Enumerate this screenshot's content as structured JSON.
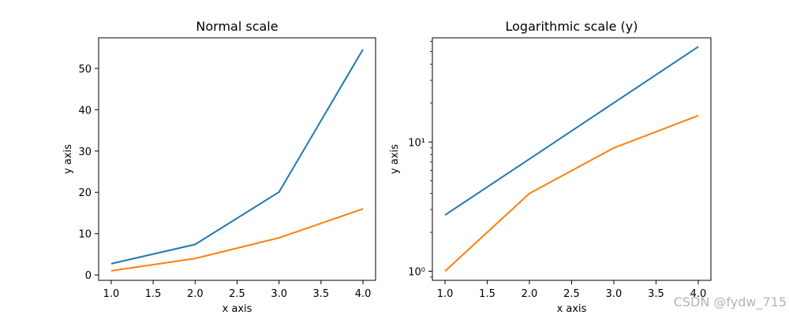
{
  "chart_data": [
    {
      "type": "line",
      "title": "Normal scale",
      "xlabel": "x axis",
      "ylabel": "y axis",
      "yscale": "linear",
      "xlim": [
        0.85,
        4.15
      ],
      "ylim": [
        -1.3,
        57.4
      ],
      "x": [
        1.0,
        2.0,
        3.0,
        4.0
      ],
      "xticks": [
        1.0,
        1.5,
        2.0,
        2.5,
        3.0,
        3.5,
        4.0
      ],
      "xtick_labels": [
        "1.0",
        "1.5",
        "2.0",
        "2.5",
        "3.0",
        "3.5",
        "4.0"
      ],
      "yticks": [
        0,
        10,
        20,
        30,
        40,
        50
      ],
      "ytick_labels": [
        "0",
        "10",
        "20",
        "30",
        "40",
        "50"
      ],
      "grid": false,
      "series": [
        {
          "values": [
            2.72,
            7.39,
            20.09,
            54.6
          ],
          "color": "#1f77b4"
        },
        {
          "values": [
            1,
            4,
            9,
            16
          ],
          "color": "#ff7f0e"
        }
      ]
    },
    {
      "type": "line",
      "title": "Logarithmic scale (y)",
      "xlabel": "x axis",
      "ylabel": "y axis",
      "yscale": "log",
      "xlim": [
        0.85,
        4.15
      ],
      "ylim": [
        0.85,
        64
      ],
      "x": [
        1.0,
        2.0,
        3.0,
        4.0
      ],
      "xticks": [
        1.0,
        1.5,
        2.0,
        2.5,
        3.0,
        3.5,
        4.0
      ],
      "xtick_labels": [
        "1.0",
        "1.5",
        "2.0",
        "2.5",
        "3.0",
        "3.5",
        "4.0"
      ],
      "yticks": [
        1,
        10
      ],
      "ytick_labels": [
        "10⁰",
        "10¹"
      ],
      "grid": false,
      "series": [
        {
          "values": [
            2.72,
            7.39,
            20.09,
            54.6
          ],
          "color": "#1f77b4"
        },
        {
          "values": [
            1,
            4,
            9,
            16
          ],
          "color": "#ff7f0e"
        }
      ]
    }
  ],
  "watermark": "CSDN @fydw_715"
}
